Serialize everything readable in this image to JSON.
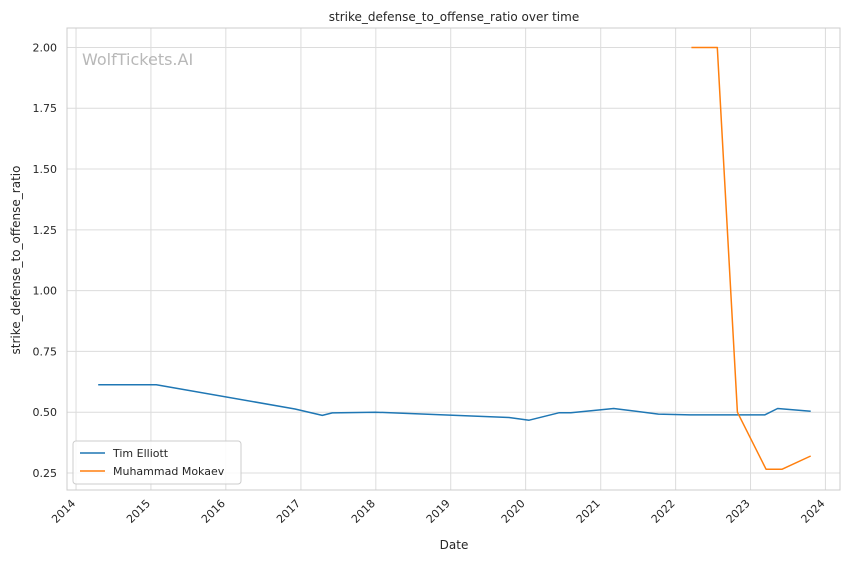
{
  "chart_data": {
    "type": "line",
    "title": "strike_defense_to_offense_ratio over time",
    "xlabel": "Date",
    "ylabel": "strike_defense_to_offense_ratio",
    "watermark": "WolfTickets.AI",
    "xlim": [
      "2013-11-18",
      "2024-03-12"
    ],
    "ylim": [
      0.18,
      2.08
    ],
    "x_ticks": [
      "2014",
      "2015",
      "2016",
      "2017",
      "2018",
      "2019",
      "2020",
      "2021",
      "2022",
      "2023",
      "2024"
    ],
    "y_ticks": [
      "0.25",
      "0.50",
      "0.75",
      "1.00",
      "1.25",
      "1.50",
      "1.75",
      "2.00"
    ],
    "grid": true,
    "legend_position": "lower-left",
    "series": [
      {
        "name": "Tim Elliott",
        "color": "#1f77b4",
        "x": [
          "2014-04-19",
          "2015-01-27",
          "2016-12-03",
          "2017-04-15",
          "2017-06-03",
          "2017-12-30",
          "2019-10-12",
          "2020-01-18",
          "2020-06-13",
          "2020-08-08",
          "2021-03-05",
          "2021-10-09",
          "2022-03-12",
          "2022-06-25",
          "2022-11-19",
          "2023-03-11",
          "2023-05-13",
          "2023-10-21"
        ],
        "y": [
          0.613,
          0.613,
          0.513,
          0.487,
          0.497,
          0.5,
          0.478,
          0.467,
          0.498,
          0.498,
          0.515,
          0.492,
          0.489,
          0.489,
          0.489,
          0.489,
          0.515,
          0.504
        ]
      },
      {
        "name": "Muhammad Mokaev",
        "color": "#ff7f0e",
        "x": [
          "2022-03-19",
          "2022-07-23",
          "2022-10-29",
          "2023-03-18",
          "2023-06-03",
          "2023-10-21"
        ],
        "y": [
          2.0,
          2.0,
          0.5,
          0.265,
          0.265,
          0.32
        ]
      }
    ]
  }
}
